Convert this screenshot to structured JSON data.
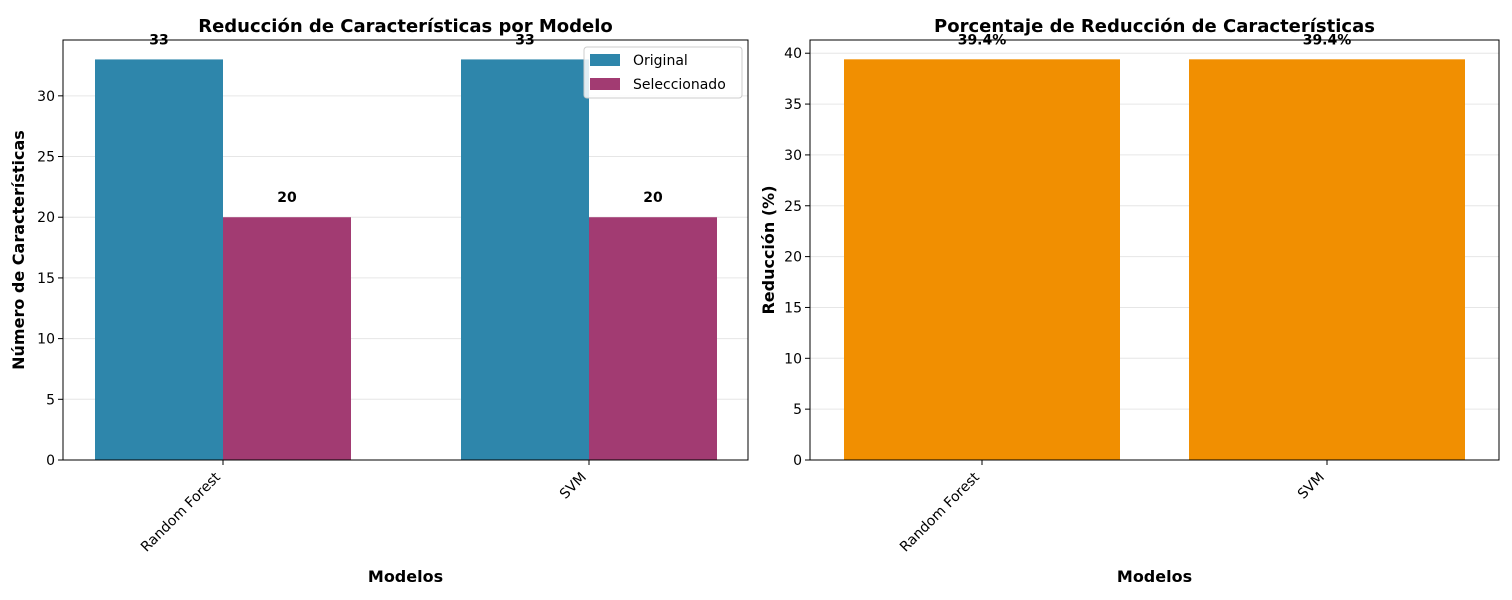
{
  "chart_data": [
    {
      "type": "bar",
      "title": "Reducción de Características por Modelo",
      "xlabel": "Modelos",
      "ylabel": "Número de Características",
      "categories": [
        "Random Forest",
        "SVM"
      ],
      "series": [
        {
          "name": "Original",
          "values": [
            33,
            33
          ],
          "color": "#2e86ab",
          "labels": [
            "33",
            "33"
          ]
        },
        {
          "name": "Seleccionado",
          "values": [
            20,
            20
          ],
          "color": "#a23b72",
          "labels": [
            "20",
            "20"
          ]
        }
      ],
      "ylim": [
        0,
        34.6
      ],
      "yticks": [
        0,
        5,
        10,
        15,
        20,
        25,
        30
      ],
      "grid": true,
      "legend": "top-right"
    },
    {
      "type": "bar",
      "title": "Porcentaje de Reducción de Características",
      "xlabel": "Modelos",
      "ylabel": "Reducción (%)",
      "categories": [
        "Random Forest",
        "SVM"
      ],
      "series": [
        {
          "values": [
            39.4,
            39.4
          ],
          "color": "#f18f01",
          "labels": [
            "39.4%",
            "39.4%"
          ]
        }
      ],
      "ylim": [
        0,
        41.3
      ],
      "yticks": [
        0,
        5,
        10,
        15,
        20,
        25,
        30,
        35,
        40
      ],
      "grid": true
    }
  ]
}
